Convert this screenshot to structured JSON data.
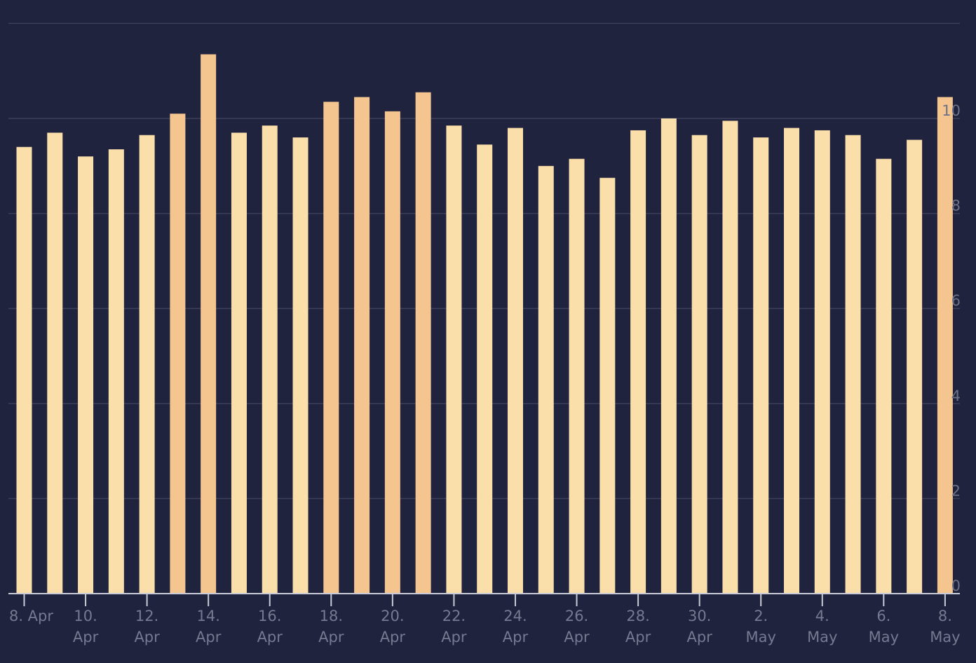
{
  "chart_data": {
    "type": "bar",
    "title": "",
    "xlabel": "",
    "ylabel": "",
    "ylim": [
      0,
      12
    ],
    "yticks": [
      0,
      2,
      4,
      6,
      8,
      10
    ],
    "yaxis_position": "right",
    "grid": true,
    "legend": "none",
    "colors": {
      "background": "#20233d",
      "bar": "#fbdfaa",
      "bar_high": "#f5c590",
      "grid": "#3c3f5a",
      "axis": "#c9cbd8",
      "label": "#767990"
    },
    "x_tick_labels": [
      [
        "8. Apr"
      ],
      [
        "10.",
        "Apr"
      ],
      [
        "12.",
        "Apr"
      ],
      [
        "14.",
        "Apr"
      ],
      [
        "16.",
        "Apr"
      ],
      [
        "18.",
        "Apr"
      ],
      [
        "20.",
        "Apr"
      ],
      [
        "22.",
        "Apr"
      ],
      [
        "24.",
        "Apr"
      ],
      [
        "26.",
        "Apr"
      ],
      [
        "28.",
        "Apr"
      ],
      [
        "30.",
        "Apr"
      ],
      [
        "2.",
        "May"
      ],
      [
        "4.",
        "May"
      ],
      [
        "6.",
        "May"
      ],
      [
        "8.",
        "May"
      ]
    ],
    "categories": [
      "2024-04-08",
      "2024-04-09",
      "2024-04-10",
      "2024-04-11",
      "2024-04-12",
      "2024-04-13",
      "2024-04-14",
      "2024-04-15",
      "2024-04-16",
      "2024-04-17",
      "2024-04-18",
      "2024-04-19",
      "2024-04-20",
      "2024-04-21",
      "2024-04-22",
      "2024-04-23",
      "2024-04-24",
      "2024-04-25",
      "2024-04-26",
      "2024-04-27",
      "2024-04-28",
      "2024-04-29",
      "2024-04-30",
      "2024-05-01",
      "2024-05-02",
      "2024-05-03",
      "2024-05-04",
      "2024-05-05",
      "2024-05-06",
      "2024-05-07",
      "2024-05-08"
    ],
    "values": [
      9.4,
      9.7,
      9.2,
      9.35,
      9.65,
      10.1,
      11.35,
      9.7,
      9.85,
      9.6,
      10.35,
      10.45,
      10.15,
      10.55,
      9.85,
      9.45,
      9.8,
      9.0,
      9.15,
      8.75,
      9.75,
      10.0,
      9.65,
      9.95,
      9.6,
      9.8,
      9.75,
      9.65,
      9.15,
      9.55,
      10.45
    ]
  }
}
